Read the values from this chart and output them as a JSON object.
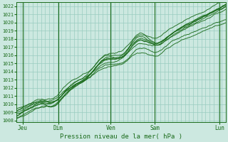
{
  "title": "Pression niveau de la mer( hPa )",
  "ylabel_values": [
    1008,
    1009,
    1010,
    1011,
    1012,
    1013,
    1014,
    1015,
    1016,
    1017,
    1018,
    1019,
    1020,
    1021,
    1022
  ],
  "ylim": [
    1007.8,
    1022.5
  ],
  "xlim": [
    0,
    100
  ],
  "xtick_positions": [
    3,
    20,
    45,
    66,
    97
  ],
  "xtick_labels": [
    "Jeu",
    "Dim",
    "Ven",
    "Sam",
    "Lun"
  ],
  "vline_positions": [
    3,
    20,
    45,
    66,
    97
  ],
  "background_color": "#cce8e0",
  "grid_color": "#99ccbf",
  "line_color": "#1a6b1a",
  "title_color": "#1a6b1a",
  "tick_color": "#1a6b1a",
  "num_points": 200
}
